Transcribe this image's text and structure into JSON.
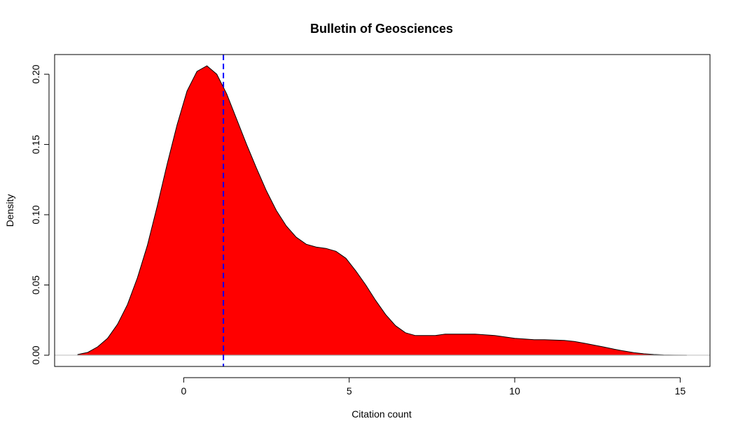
{
  "chart_data": {
    "type": "area",
    "title": "Bulletin of Geosciences",
    "xlabel": "Citation count",
    "ylabel": "Density",
    "xlim": [
      -3.9,
      15.9
    ],
    "ylim": [
      -0.008,
      0.214
    ],
    "x_ticks": [
      0,
      5,
      10,
      15
    ],
    "y_ticks": [
      0.0,
      0.05,
      0.1,
      0.15,
      0.2
    ],
    "x_tick_labels": [
      "0",
      "5",
      "10",
      "15"
    ],
    "y_tick_labels": [
      "0.00",
      "0.05",
      "0.10",
      "0.15",
      "0.20"
    ],
    "fill_color": "#ff0000",
    "outline_color": "#000000",
    "baseline_color": "#bebebe",
    "mean_line": {
      "x": 1.2,
      "color": "#0000ff",
      "style": "dashed"
    },
    "series": [
      {
        "name": "density",
        "x": [
          -3.2,
          -2.9,
          -2.6,
          -2.3,
          -2.0,
          -1.7,
          -1.4,
          -1.1,
          -0.8,
          -0.5,
          -0.2,
          0.1,
          0.4,
          0.7,
          1.0,
          1.3,
          1.6,
          1.9,
          2.2,
          2.5,
          2.8,
          3.1,
          3.4,
          3.7,
          4.0,
          4.3,
          4.6,
          4.9,
          5.2,
          5.5,
          5.8,
          6.1,
          6.4,
          6.7,
          7.0,
          7.3,
          7.6,
          7.9,
          8.2,
          8.5,
          8.8,
          9.1,
          9.4,
          9.7,
          10.0,
          10.3,
          10.6,
          10.9,
          11.2,
          11.5,
          11.8,
          12.1,
          12.4,
          12.7,
          13.0,
          13.3,
          13.6,
          13.9,
          14.2,
          14.5,
          14.8,
          15.2
        ],
        "y": [
          0.0005,
          0.002,
          0.006,
          0.012,
          0.022,
          0.036,
          0.055,
          0.078,
          0.106,
          0.136,
          0.164,
          0.188,
          0.202,
          0.206,
          0.2,
          0.186,
          0.168,
          0.15,
          0.133,
          0.117,
          0.103,
          0.092,
          0.084,
          0.079,
          0.077,
          0.076,
          0.074,
          0.069,
          0.06,
          0.05,
          0.039,
          0.029,
          0.021,
          0.016,
          0.014,
          0.014,
          0.014,
          0.015,
          0.015,
          0.015,
          0.015,
          0.0145,
          0.014,
          0.013,
          0.012,
          0.0115,
          0.011,
          0.011,
          0.0108,
          0.0105,
          0.0098,
          0.0086,
          0.0072,
          0.0058,
          0.0043,
          0.003,
          0.0018,
          0.001,
          0.0005,
          0.0002,
          0.0001,
          0.0
        ]
      }
    ]
  }
}
